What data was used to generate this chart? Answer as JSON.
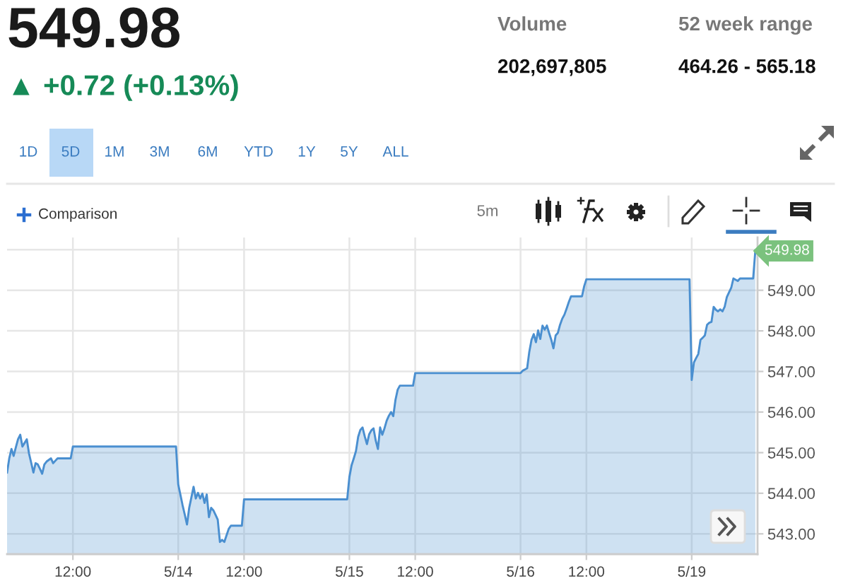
{
  "chart_data": {
    "type": "area",
    "title": "549.98",
    "subtitle": "▲ +0.72 (+0.13%)",
    "annotations": [
      "Volume",
      "202,697,805",
      "52 week range",
      "464.26 - 565.18",
      "1D",
      "5D",
      "1M",
      "3M",
      "6M",
      "YTD",
      "1Y",
      "5Y",
      "ALL",
      "Comparison",
      "5m",
      "549.98"
    ],
    "categories": [
      null,
      null,
      null,
      null,
      null,
      null,
      null,
      null,
      null,
      null,
      null,
      null,
      null,
      null,
      null,
      null,
      null,
      null,
      null,
      null,
      null,
      null,
      null,
      null,
      null,
      null,
      null,
      null,
      null,
      null,
      "12:00",
      null,
      null,
      null,
      null,
      null,
      null,
      null,
      null,
      null,
      null,
      null,
      null,
      null,
      null,
      null,
      null,
      null,
      null,
      null,
      null,
      null,
      null,
      null,
      null,
      null,
      null,
      null,
      null,
      null,
      null,
      null,
      null,
      null,
      null,
      null,
      null,
      null,
      null,
      null,
      null,
      null,
      null,
      null,
      null,
      null,
      null,
      null,
      "5/14",
      null,
      null,
      null,
      null,
      null,
      null,
      null,
      null,
      null,
      null,
      null,
      null,
      null,
      null,
      null,
      null,
      null,
      null,
      null,
      null,
      null,
      null,
      null,
      null,
      null,
      null,
      null,
      null,
      null,
      "12:00",
      null,
      null,
      null,
      null,
      null,
      null,
      null,
      null,
      null,
      null,
      null,
      null,
      null,
      null,
      null,
      null,
      null,
      null,
      null,
      null,
      null,
      null,
      null,
      null,
      null,
      null,
      null,
      null,
      null,
      null,
      null,
      null,
      null,
      null,
      null,
      null,
      null,
      null,
      null,
      null,
      null,
      null,
      null,
      null,
      null,
      null,
      null,
      "5/15",
      null,
      null,
      null,
      null,
      null,
      null,
      null,
      null,
      null,
      null,
      null,
      null,
      null,
      null,
      null,
      null,
      null,
      null,
      null,
      null,
      null,
      null,
      null,
      null,
      null,
      null,
      null,
      null,
      null,
      "12:00",
      null,
      null,
      null,
      null,
      null,
      null,
      null,
      null,
      null,
      null,
      null,
      null,
      null,
      null,
      null,
      null,
      null,
      null,
      null,
      null,
      null,
      null,
      null,
      null,
      null,
      null,
      null,
      null,
      null,
      null,
      null,
      null,
      null,
      null,
      null,
      null,
      null,
      null,
      null,
      null,
      null,
      null,
      null,
      null,
      null,
      null,
      null,
      "5/16",
      null,
      null,
      null,
      null,
      null,
      null,
      null,
      null,
      null,
      null,
      null,
      null,
      null,
      null,
      null,
      null,
      null,
      null,
      null,
      null,
      null,
      null,
      null,
      null,
      null,
      null,
      null,
      null,
      null,
      "12:00",
      null,
      null,
      null,
      null,
      null,
      null,
      null,
      null,
      null,
      null,
      null,
      null,
      null,
      null,
      null,
      null,
      null,
      null,
      null,
      null,
      null,
      null,
      null,
      null,
      null,
      null,
      null,
      null,
      null,
      null,
      null,
      null,
      null,
      null,
      null,
      null,
      null,
      null,
      null,
      null,
      null,
      null,
      null,
      null,
      null,
      null,
      null,
      "5/19",
      null,
      null,
      null,
      null,
      null,
      null,
      null,
      null,
      null,
      null,
      null,
      null,
      null,
      null,
      null,
      null,
      null,
      null,
      null,
      null,
      null,
      null,
      null,
      null,
      null,
      null,
      null,
      null,
      null
    ],
    "values": [
      544.51,
      544.86,
      545.09,
      544.92,
      545.13,
      545.33,
      545.44,
      545.15,
      545.24,
      545.33,
      544.98,
      544.75,
      544.51,
      544.74,
      544.71,
      544.6,
      544.48,
      544.71,
      544.78,
      544.82,
      544.86,
      544.74,
      544.8,
      544.86,
      544.86,
      544.86,
      544.86,
      544.86,
      544.86,
      544.86,
      545.15,
      545.15,
      545.15,
      545.15,
      545.15,
      545.15,
      545.15,
      545.15,
      545.15,
      545.15,
      545.15,
      545.15,
      545.15,
      545.15,
      545.15,
      545.15,
      545.15,
      545.15,
      545.15,
      545.15,
      545.15,
      545.15,
      545.15,
      545.15,
      545.15,
      545.15,
      545.15,
      545.15,
      545.15,
      545.15,
      545.15,
      545.15,
      545.15,
      545.15,
      545.15,
      545.15,
      545.15,
      545.15,
      545.15,
      545.15,
      545.15,
      545.15,
      545.15,
      545.15,
      545.15,
      545.15,
      545.15,
      545.15,
      544.22,
      543.96,
      543.7,
      543.47,
      543.23,
      543.64,
      543.9,
      544.16,
      543.87,
      544.01,
      543.87,
      543.99,
      543.76,
      543.97,
      543.41,
      543.64,
      543.58,
      543.47,
      543.35,
      542.8,
      542.85,
      542.8,
      542.96,
      543.12,
      543.2,
      543.2,
      543.2,
      543.2,
      543.2,
      543.2,
      543.85,
      543.85,
      543.85,
      543.85,
      543.85,
      543.85,
      543.85,
      543.85,
      543.85,
      543.85,
      543.85,
      543.85,
      543.85,
      543.85,
      543.85,
      543.85,
      543.85,
      543.85,
      543.85,
      543.85,
      543.85,
      543.85,
      543.85,
      543.85,
      543.85,
      543.85,
      543.85,
      543.85,
      543.85,
      543.85,
      543.85,
      543.85,
      543.85,
      543.85,
      543.85,
      543.85,
      543.85,
      543.85,
      543.85,
      543.85,
      543.85,
      543.85,
      543.85,
      543.85,
      543.85,
      543.85,
      543.85,
      543.85,
      544.4,
      544.69,
      544.86,
      545.04,
      545.39,
      545.56,
      545.62,
      545.4,
      545.21,
      545.45,
      545.55,
      545.6,
      545.3,
      545.09,
      545.62,
      545.44,
      545.6,
      545.79,
      545.91,
      546.0,
      545.9,
      546.3,
      546.55,
      546.65,
      546.65,
      546.65,
      546.65,
      546.65,
      546.65,
      546.65,
      546.96,
      546.96,
      546.96,
      546.96,
      546.96,
      546.96,
      546.96,
      546.96,
      546.96,
      546.96,
      546.96,
      546.96,
      546.96,
      546.96,
      546.96,
      546.96,
      546.96,
      546.96,
      546.96,
      546.96,
      546.96,
      546.96,
      546.96,
      546.96,
      546.96,
      546.96,
      546.96,
      546.96,
      546.96,
      546.96,
      546.96,
      546.96,
      546.96,
      546.96,
      546.96,
      546.96,
      546.96,
      546.96,
      546.96,
      546.96,
      546.96,
      546.96,
      546.96,
      546.96,
      546.96,
      546.96,
      546.96,
      546.96,
      546.96,
      547.02,
      547.05,
      547.08,
      547.49,
      547.78,
      547.92,
      547.72,
      548.01,
      547.8,
      548.13,
      548.03,
      548.13,
      547.95,
      547.78,
      547.57,
      547.89,
      547.95,
      548.15,
      548.3,
      548.4,
      548.55,
      548.71,
      548.85,
      548.85,
      548.85,
      548.85,
      548.85,
      548.85,
      549.1,
      549.27,
      549.27,
      549.27,
      549.27,
      549.27,
      549.27,
      549.27,
      549.27,
      549.27,
      549.27,
      549.27,
      549.27,
      549.27,
      549.27,
      549.27,
      549.27,
      549.27,
      549.27,
      549.27,
      549.27,
      549.27,
      549.27,
      549.27,
      549.27,
      549.27,
      549.27,
      549.27,
      549.27,
      549.27,
      549.27,
      549.27,
      549.27,
      549.27,
      549.27,
      549.27,
      549.27,
      549.27,
      549.27,
      549.27,
      549.27,
      549.27,
      549.27,
      549.27,
      549.27,
      549.27,
      549.27,
      549.27,
      549.27,
      546.79,
      547.22,
      547.33,
      547.43,
      547.78,
      547.83,
      547.89,
      548.15,
      548.2,
      548.22,
      548.59,
      548.52,
      548.48,
      548.53,
      548.48,
      548.59,
      548.83,
      548.95,
      549.06,
      549.29,
      549.26,
      549.23,
      549.29,
      549.29,
      549.29,
      549.29,
      549.29,
      549.29,
      549.29,
      549.98
    ],
    "color": "#4a8fd0",
    "ylim": [
      542.5,
      550.3
    ],
    "yticks": [
      {
        "value": 543,
        "label": "543.00"
      },
      {
        "value": 544,
        "label": "544.00"
      },
      {
        "value": 545,
        "label": "545.00"
      },
      {
        "value": 546,
        "label": "546.00"
      },
      {
        "value": 547,
        "label": "547.00"
      },
      {
        "value": 548,
        "label": "548.00"
      },
      {
        "value": 549,
        "label": "549.00"
      },
      {
        "value": 550,
        "label": null
      }
    ],
    "grid": true
  }
}
